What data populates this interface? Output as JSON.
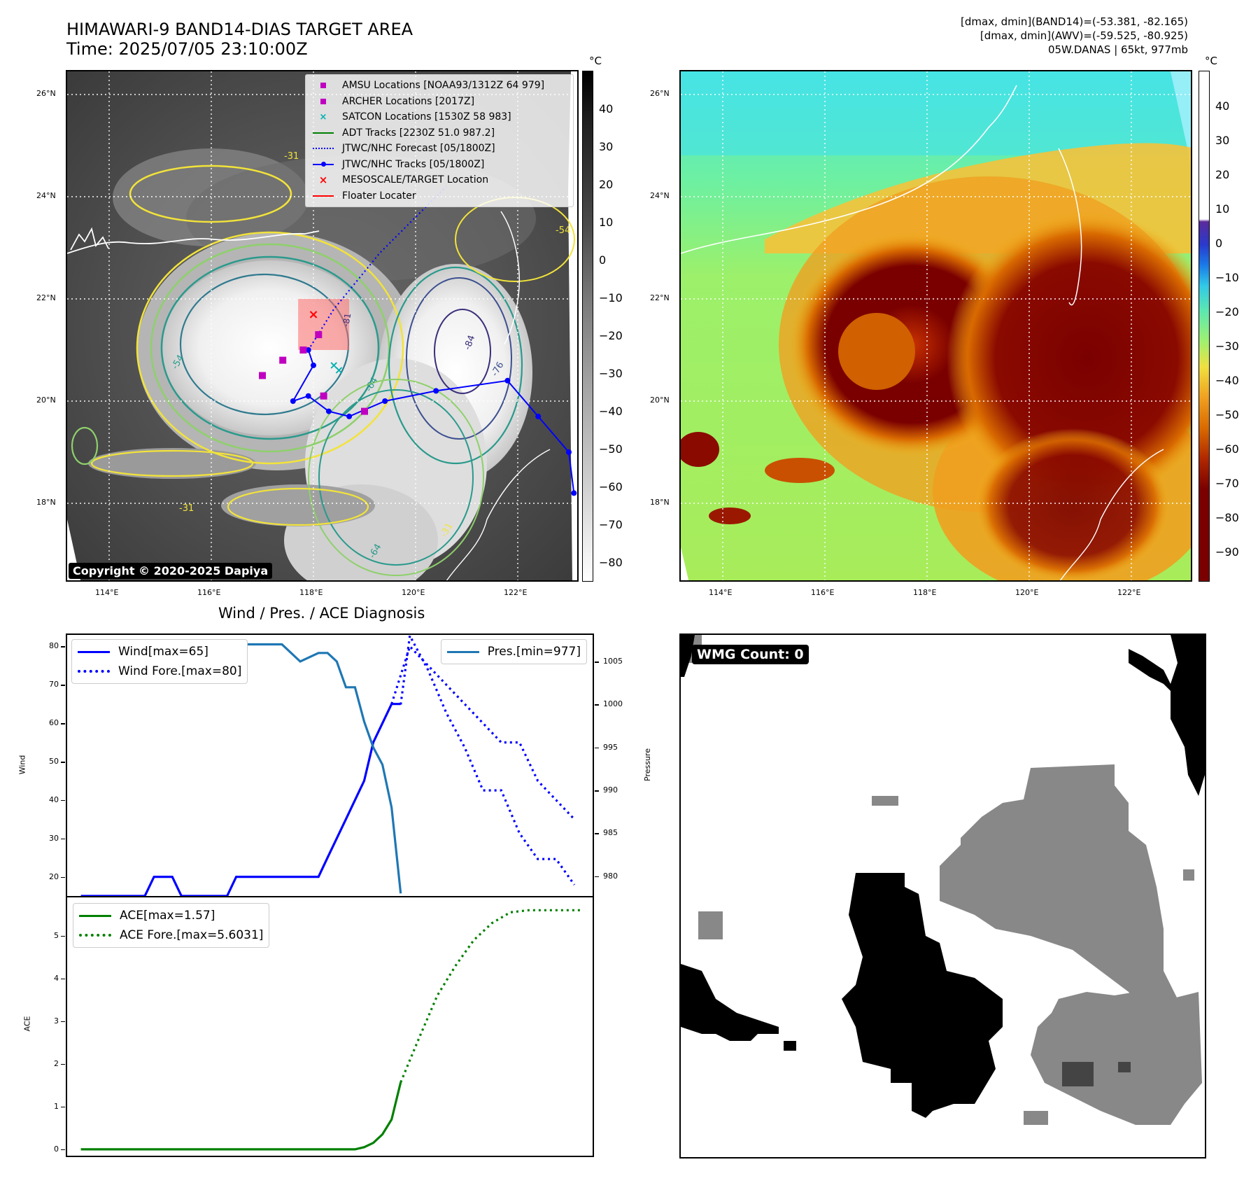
{
  "header": {
    "title": "HIMAWARI-9 BAND14-DIAS TARGET AREA",
    "time": "Time: 2025/07/05 23:10:00Z",
    "info_line1": "[dmax, dmin](BAND14)=(-53.381, -82.165)",
    "info_line2": "[dmax, dmin](AWV)=(-59.525, -80.925)",
    "info_line3": "05W.DANAS | 65kt, 977mb"
  },
  "map_axes": {
    "lat_ticks": [
      "26°N",
      "24°N",
      "22°N",
      "20°N",
      "18°N"
    ],
    "lon_ticks": [
      "114°E",
      "116°E",
      "118°E",
      "120°E",
      "122°E"
    ]
  },
  "ir_panel": {
    "colorbar_unit": "°C",
    "colorbar_ticks": [
      "40",
      "30",
      "20",
      "10",
      "0",
      "−10",
      "−20",
      "−30",
      "−40",
      "−50",
      "−60",
      "−70",
      "−80"
    ],
    "copyright": "Copyright © 2020-2025 Dapiya",
    "contour_labels": [
      "-31",
      "-54",
      "-64",
      "-76",
      "-84",
      "-31",
      "-31",
      "-64",
      "-81",
      "-54"
    ],
    "legend": [
      {
        "label": "AMSU Locations [NOAA93/1312Z 64 979]",
        "marker": "square",
        "color": "#c000c0"
      },
      {
        "label": "ARCHER Locations [2017Z]",
        "marker": "square",
        "color": "#c000c0"
      },
      {
        "label": "SATCON Locations [1530Z 58 983]",
        "marker": "x",
        "color": "#00b0b0"
      },
      {
        "label": "ADT Tracks [2230Z 51.0 987.2]",
        "marker": "line",
        "color": "#008000"
      },
      {
        "label": "JTWC/NHC Forecast [05/1800Z]",
        "marker": "dotted",
        "color": "#0000ff"
      },
      {
        "label": "JTWC/NHC Tracks [05/1800Z]",
        "marker": "line-dot",
        "color": "#0000ff"
      },
      {
        "label": "MESOSCALE/TARGET Location",
        "marker": "x",
        "color": "#ff0000"
      },
      {
        "label": "Floater Locater",
        "marker": "line",
        "color": "#ff0000"
      }
    ],
    "tracks": {
      "jtwc_track": [
        [
          123.1,
          18.2
        ],
        [
          123.0,
          19.0
        ],
        [
          122.4,
          19.7
        ],
        [
          121.8,
          20.4
        ],
        [
          120.4,
          20.2
        ],
        [
          119.4,
          20.0
        ],
        [
          118.7,
          19.7
        ],
        [
          118.3,
          19.8
        ],
        [
          117.9,
          20.1
        ],
        [
          117.6,
          20.0
        ],
        [
          118.0,
          20.7
        ],
        [
          117.9,
          21.0
        ]
      ],
      "jtwc_forecast": [
        [
          117.9,
          21.0
        ],
        [
          118.4,
          21.8
        ],
        [
          119.3,
          22.9
        ],
        [
          120.0,
          23.6
        ],
        [
          120.6,
          24.2
        ]
      ],
      "amsu": [
        [
          117.0,
          20.5
        ],
        [
          117.4,
          20.8
        ],
        [
          117.8,
          21.0
        ],
        [
          118.1,
          21.3
        ],
        [
          118.2,
          20.1
        ],
        [
          119.0,
          19.8
        ]
      ],
      "satcon": [
        [
          118.4,
          20.7
        ],
        [
          118.5,
          20.6
        ]
      ],
      "mesoscale_target": [
        [
          118.0,
          21.7
        ]
      ],
      "floater_box": {
        "lon": [
          117.7,
          118.7
        ],
        "lat": [
          21.0,
          22.0
        ]
      }
    }
  },
  "awv_panel": {
    "colorbar_unit": "°C",
    "colorbar_ticks": [
      "40",
      "30",
      "20",
      "10",
      "0",
      "−10",
      "−20",
      "−30",
      "−40",
      "−50",
      "−60",
      "−70",
      "−80",
      "−90"
    ]
  },
  "diagnosis_panel": {
    "title": "Wind / Pres. / ACE Diagnosis",
    "wind_ylabel": "Wind",
    "pres_ylabel": "Pressure",
    "ace_ylabel": "ACE",
    "wind_yticks": [
      "80",
      "70",
      "60",
      "50",
      "40",
      "30",
      "20"
    ],
    "pres_yticks": [
      "1005",
      "1000",
      "995",
      "990",
      "985",
      "980"
    ],
    "ace_yticks": [
      "5",
      "4",
      "3",
      "2",
      "1",
      "0"
    ],
    "legend_wind": "Wind[max=65]",
    "legend_wind_fore": "Wind Fore.[max=80]",
    "legend_pres": "Pres.[min=977]",
    "legend_ace": "ACE[max=1.57]",
    "legend_ace_fore": "ACE Fore.[max=5.6031]"
  },
  "wmg_panel": {
    "label": "WMG Count: 0"
  },
  "chart_data": [
    {
      "type": "line",
      "title": "Wind / Pres. / ACE Diagnosis",
      "ylabel": "Wind",
      "y2label": "Pressure",
      "ylim": [
        15,
        83
      ],
      "y2lim": [
        977.7,
        1008.1
      ],
      "series": [
        {
          "name": "Wind[max=65]",
          "axis": "left",
          "color": "#0000ff",
          "style": "solid",
          "x": [
            0,
            1,
            2,
            3,
            4,
            5,
            6,
            7,
            8,
            9,
            10,
            11,
            12,
            13,
            14,
            15,
            16,
            17,
            18,
            19,
            20,
            21,
            22,
            23,
            24,
            25,
            26,
            27,
            28,
            29,
            30,
            31,
            32,
            33,
            34,
            35
          ],
          "values": [
            15,
            15,
            15,
            15,
            15,
            15,
            15,
            15,
            20,
            20,
            20,
            15,
            15,
            15,
            15,
            15,
            15,
            20,
            20,
            20,
            20,
            20,
            20,
            20,
            20,
            20,
            20,
            25,
            30,
            35,
            40,
            45,
            55,
            60,
            65,
            65
          ]
        },
        {
          "name": "Wind Fore.[max=80]",
          "axis": "left",
          "color": "#0000ff",
          "style": "dotted",
          "x": [
            34,
            36,
            38,
            40,
            42,
            44,
            46,
            48,
            50,
            52,
            54
          ],
          "values": [
            65,
            80,
            75,
            70,
            65,
            60,
            55,
            55,
            45,
            40,
            35
          ]
        },
        {
          "name": "Pres.[min=977]",
          "axis": "right",
          "color": "#1f77b4",
          "style": "solid",
          "x": [
            0,
            2,
            4,
            6,
            8,
            10,
            12,
            14,
            16,
            18,
            20,
            22,
            24,
            26,
            27,
            28,
            29,
            30,
            31,
            32,
            33,
            34,
            35
          ],
          "values": [
            1007,
            1007,
            1007,
            1005,
            1005,
            1005,
            1006,
            1006,
            1006,
            1007,
            1007,
            1007,
            1005,
            1006,
            1006,
            1005,
            1002,
            1002,
            998,
            995,
            993,
            988,
            978
          ]
        },
        {
          "name": "",
          "axis": "right",
          "color": "#0000ff",
          "style": "dotted",
          "x": [
            35,
            36,
            38,
            40,
            42,
            44,
            46,
            48,
            50,
            52,
            54
          ],
          "values": [
            1000,
            1008,
            1004,
            999,
            995,
            990,
            990,
            985,
            982,
            982,
            979
          ]
        }
      ]
    },
    {
      "type": "line",
      "ylabel": "ACE",
      "ylim": [
        -0.15,
        5.9
      ],
      "series": [
        {
          "name": "ACE[max=1.57]",
          "color": "#008000",
          "style": "solid",
          "x": [
            0,
            4,
            8,
            12,
            16,
            20,
            24,
            28,
            30,
            31,
            32,
            33,
            34,
            35
          ],
          "values": [
            0,
            0,
            0,
            0,
            0,
            0,
            0,
            0,
            0,
            0.05,
            0.15,
            0.35,
            0.7,
            1.57
          ]
        },
        {
          "name": "ACE Fore.[max=5.6031]",
          "color": "#008000",
          "style": "dotted",
          "x": [
            35,
            37,
            39,
            41,
            43,
            45,
            47,
            49,
            51,
            53,
            55
          ],
          "values": [
            1.57,
            2.6,
            3.6,
            4.3,
            4.9,
            5.3,
            5.55,
            5.6,
            5.6,
            5.6,
            5.6
          ]
        }
      ]
    }
  ]
}
